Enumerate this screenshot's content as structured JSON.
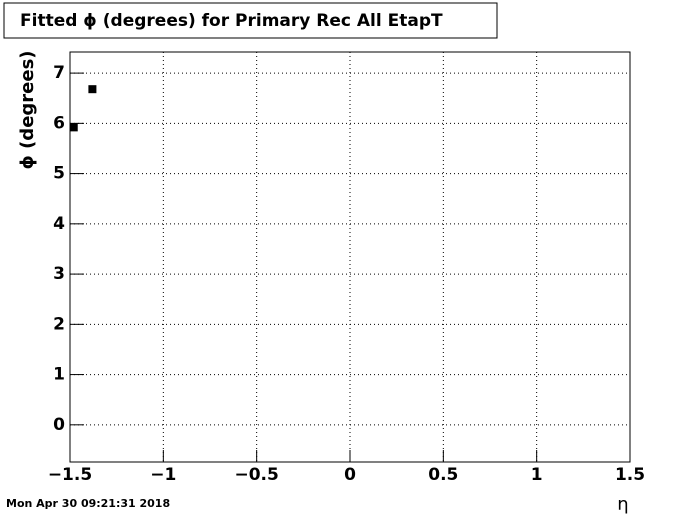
{
  "chart_data": {
    "type": "scatter",
    "title": "Fitted ϕ (degrees) for Primary Rec All EtapT",
    "x_label": "η",
    "y_label": "ϕ (degrees)",
    "timestamp": "Mon Apr 30 09:21:31 2018",
    "x": [
      -1.48,
      -1.38
    ],
    "values": [
      5.92,
      6.68
    ],
    "color": "#000000",
    "xlim": [
      -1.5,
      1.5
    ],
    "ylim": [
      -0.74,
      7.42
    ],
    "xticks": [
      {
        "value": -1.5,
        "label": "−1.5"
      },
      {
        "value": -1,
        "label": "−1"
      },
      {
        "value": -0.5,
        "label": "−0.5"
      },
      0,
      0.5,
      1,
      1.5
    ],
    "yticks": [
      0,
      1,
      2,
      3,
      4,
      5,
      6,
      7
    ],
    "grid": true
  }
}
